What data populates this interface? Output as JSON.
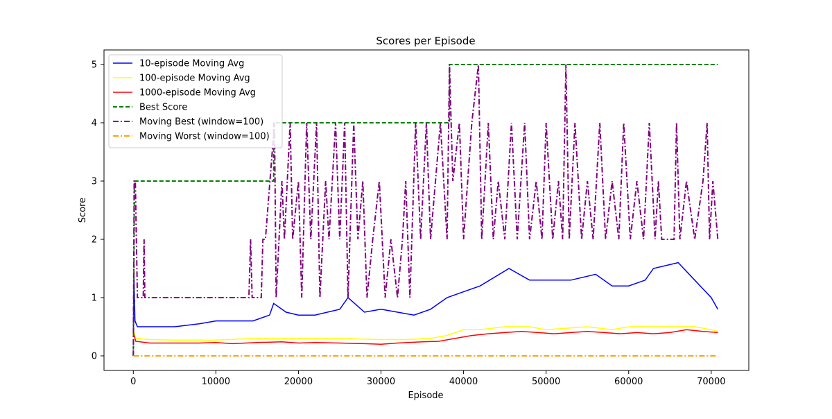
{
  "chart_data": {
    "type": "line",
    "title": "Scores per Episode",
    "xlabel": "Episode",
    "ylabel": "Score",
    "xlim": [
      -3550,
      74550
    ],
    "ylim": [
      -0.25,
      5.25
    ],
    "x_ticks": [
      0,
      10000,
      20000,
      30000,
      40000,
      50000,
      60000,
      70000
    ],
    "x_tick_labels": [
      "0",
      "10000",
      "20000",
      "30000",
      "40000",
      "50000",
      "60000",
      "70000"
    ],
    "y_ticks": [
      0,
      1,
      2,
      3,
      4,
      5
    ],
    "y_tick_labels": [
      "0",
      "1",
      "2",
      "3",
      "4",
      "5"
    ],
    "grid": false,
    "legend_position": "top-left",
    "series": [
      {
        "name": "10-episode Moving Avg",
        "color": "#0000ff",
        "style": "solid",
        "points": [
          [
            0,
            0.4
          ],
          [
            80,
            1.4
          ],
          [
            200,
            0.6
          ],
          [
            500,
            0.5
          ],
          [
            2000,
            0.5
          ],
          [
            5000,
            0.5
          ],
          [
            8000,
            0.55
          ],
          [
            10000,
            0.6
          ],
          [
            13000,
            0.6
          ],
          [
            14500,
            0.6
          ],
          [
            16500,
            0.7
          ],
          [
            17000,
            0.9
          ],
          [
            18500,
            0.75
          ],
          [
            20000,
            0.7
          ],
          [
            22000,
            0.7
          ],
          [
            25000,
            0.8
          ],
          [
            26000,
            1.0
          ],
          [
            28000,
            0.75
          ],
          [
            30000,
            0.8
          ],
          [
            32000,
            0.75
          ],
          [
            34000,
            0.7
          ],
          [
            36000,
            0.8
          ],
          [
            38000,
            1.0
          ],
          [
            40000,
            1.1
          ],
          [
            42000,
            1.2
          ],
          [
            45500,
            1.5
          ],
          [
            48000,
            1.3
          ],
          [
            50000,
            1.3
          ],
          [
            53000,
            1.3
          ],
          [
            56000,
            1.4
          ],
          [
            58000,
            1.2
          ],
          [
            60000,
            1.2
          ],
          [
            62000,
            1.3
          ],
          [
            63000,
            1.5
          ],
          [
            66000,
            1.6
          ],
          [
            68000,
            1.3
          ],
          [
            70000,
            1.0
          ],
          [
            70800,
            0.8
          ]
        ]
      },
      {
        "name": "100-episode Moving Avg",
        "color": "#ffff00",
        "style": "solid",
        "points": [
          [
            0,
            0.45
          ],
          [
            300,
            0.3
          ],
          [
            2000,
            0.28
          ],
          [
            5000,
            0.27
          ],
          [
            10000,
            0.27
          ],
          [
            15000,
            0.3
          ],
          [
            20000,
            0.3
          ],
          [
            25000,
            0.3
          ],
          [
            30000,
            0.28
          ],
          [
            33000,
            0.28
          ],
          [
            36000,
            0.3
          ],
          [
            38000,
            0.35
          ],
          [
            40000,
            0.45
          ],
          [
            42000,
            0.45
          ],
          [
            45000,
            0.5
          ],
          [
            48000,
            0.5
          ],
          [
            50000,
            0.45
          ],
          [
            55000,
            0.5
          ],
          [
            58000,
            0.45
          ],
          [
            60000,
            0.5
          ],
          [
            65000,
            0.5
          ],
          [
            68000,
            0.5
          ],
          [
            70000,
            0.45
          ],
          [
            70800,
            0.42
          ]
        ]
      },
      {
        "name": "1000-episode Moving Avg",
        "color": "#ff0000",
        "style": "solid",
        "points": [
          [
            0,
            0.4
          ],
          [
            300,
            0.25
          ],
          [
            2000,
            0.22
          ],
          [
            5000,
            0.22
          ],
          [
            8000,
            0.22
          ],
          [
            10000,
            0.23
          ],
          [
            12000,
            0.21
          ],
          [
            15000,
            0.23
          ],
          [
            18000,
            0.24
          ],
          [
            20000,
            0.22
          ],
          [
            22000,
            0.23
          ],
          [
            25000,
            0.22
          ],
          [
            28000,
            0.21
          ],
          [
            30000,
            0.2
          ],
          [
            32000,
            0.22
          ],
          [
            35000,
            0.24
          ],
          [
            37000,
            0.25
          ],
          [
            39000,
            0.3
          ],
          [
            41000,
            0.35
          ],
          [
            43000,
            0.38
          ],
          [
            45000,
            0.4
          ],
          [
            47000,
            0.42
          ],
          [
            49000,
            0.4
          ],
          [
            51000,
            0.38
          ],
          [
            53000,
            0.4
          ],
          [
            55000,
            0.42
          ],
          [
            57000,
            0.4
          ],
          [
            59000,
            0.38
          ],
          [
            61000,
            0.4
          ],
          [
            63000,
            0.38
          ],
          [
            65000,
            0.4
          ],
          [
            67000,
            0.45
          ],
          [
            69000,
            0.42
          ],
          [
            70800,
            0.4
          ]
        ]
      },
      {
        "name": "Best Score",
        "color": "#008000",
        "style": "dashed",
        "points": [
          [
            0,
            0
          ],
          [
            60,
            1
          ],
          [
            130,
            3
          ],
          [
            17000,
            3
          ],
          [
            17000,
            4
          ],
          [
            38300,
            4
          ],
          [
            38300,
            5
          ],
          [
            70800,
            5
          ]
        ]
      },
      {
        "name": "Moving Best (window=100)",
        "color": "#800080",
        "style": "dashdot",
        "points": [
          [
            0,
            0
          ],
          [
            100,
            3
          ],
          [
            250,
            3
          ],
          [
            500,
            1
          ],
          [
            1200,
            1
          ],
          [
            1300,
            2
          ],
          [
            1400,
            1
          ],
          [
            14000,
            1
          ],
          [
            14200,
            2
          ],
          [
            14400,
            1
          ],
          [
            15500,
            1
          ],
          [
            15700,
            2
          ],
          [
            16000,
            2
          ],
          [
            17100,
            4
          ],
          [
            17300,
            1
          ],
          [
            18000,
            3
          ],
          [
            18300,
            2
          ],
          [
            19000,
            4
          ],
          [
            19300,
            2
          ],
          [
            20000,
            3
          ],
          [
            20400,
            1
          ],
          [
            21000,
            4
          ],
          [
            21500,
            2
          ],
          [
            22200,
            4
          ],
          [
            22600,
            1
          ],
          [
            23300,
            3
          ],
          [
            23700,
            2
          ],
          [
            24500,
            4
          ],
          [
            25000,
            2
          ],
          [
            25600,
            4
          ],
          [
            26000,
            1
          ],
          [
            26700,
            4
          ],
          [
            27200,
            2
          ],
          [
            27800,
            3
          ],
          [
            28300,
            1
          ],
          [
            29000,
            2
          ],
          [
            29800,
            3
          ],
          [
            30500,
            1
          ],
          [
            31200,
            2
          ],
          [
            32000,
            1
          ],
          [
            32600,
            2
          ],
          [
            33000,
            3
          ],
          [
            33500,
            1
          ],
          [
            34200,
            4
          ],
          [
            34800,
            2
          ],
          [
            35500,
            4
          ],
          [
            36000,
            2
          ],
          [
            37200,
            4
          ],
          [
            38000,
            2
          ],
          [
            38300,
            5
          ],
          [
            38700,
            3
          ],
          [
            39500,
            4
          ],
          [
            40000,
            2
          ],
          [
            41000,
            4
          ],
          [
            41800,
            5
          ],
          [
            42200,
            2
          ],
          [
            43000,
            4
          ],
          [
            43600,
            2
          ],
          [
            44200,
            3
          ],
          [
            45000,
            2
          ],
          [
            45800,
            4
          ],
          [
            46500,
            2
          ],
          [
            47400,
            4
          ],
          [
            48000,
            2
          ],
          [
            48800,
            3
          ],
          [
            49500,
            2
          ],
          [
            50000,
            4
          ],
          [
            50800,
            2
          ],
          [
            51500,
            3
          ],
          [
            52000,
            2
          ],
          [
            52400,
            5
          ],
          [
            52800,
            2
          ],
          [
            53500,
            4
          ],
          [
            54300,
            2
          ],
          [
            55000,
            3
          ],
          [
            55700,
            2
          ],
          [
            56500,
            4
          ],
          [
            57200,
            2
          ],
          [
            58000,
            3
          ],
          [
            58800,
            2
          ],
          [
            59400,
            4
          ],
          [
            60200,
            2
          ],
          [
            61000,
            3
          ],
          [
            61800,
            2
          ],
          [
            62500,
            4
          ],
          [
            63200,
            2
          ],
          [
            63600,
            3
          ],
          [
            64000,
            2
          ],
          [
            65500,
            2
          ],
          [
            65800,
            4
          ],
          [
            66200,
            2
          ],
          [
            67000,
            3
          ],
          [
            68000,
            2
          ],
          [
            69000,
            3
          ],
          [
            69500,
            4
          ],
          [
            69800,
            2
          ],
          [
            70200,
            3
          ],
          [
            70800,
            2
          ]
        ]
      },
      {
        "name": "Moving Worst (window=100)",
        "color": "#ffa500",
        "style": "dashdot",
        "points": [
          [
            0,
            0
          ],
          [
            70800,
            0
          ]
        ]
      }
    ]
  }
}
